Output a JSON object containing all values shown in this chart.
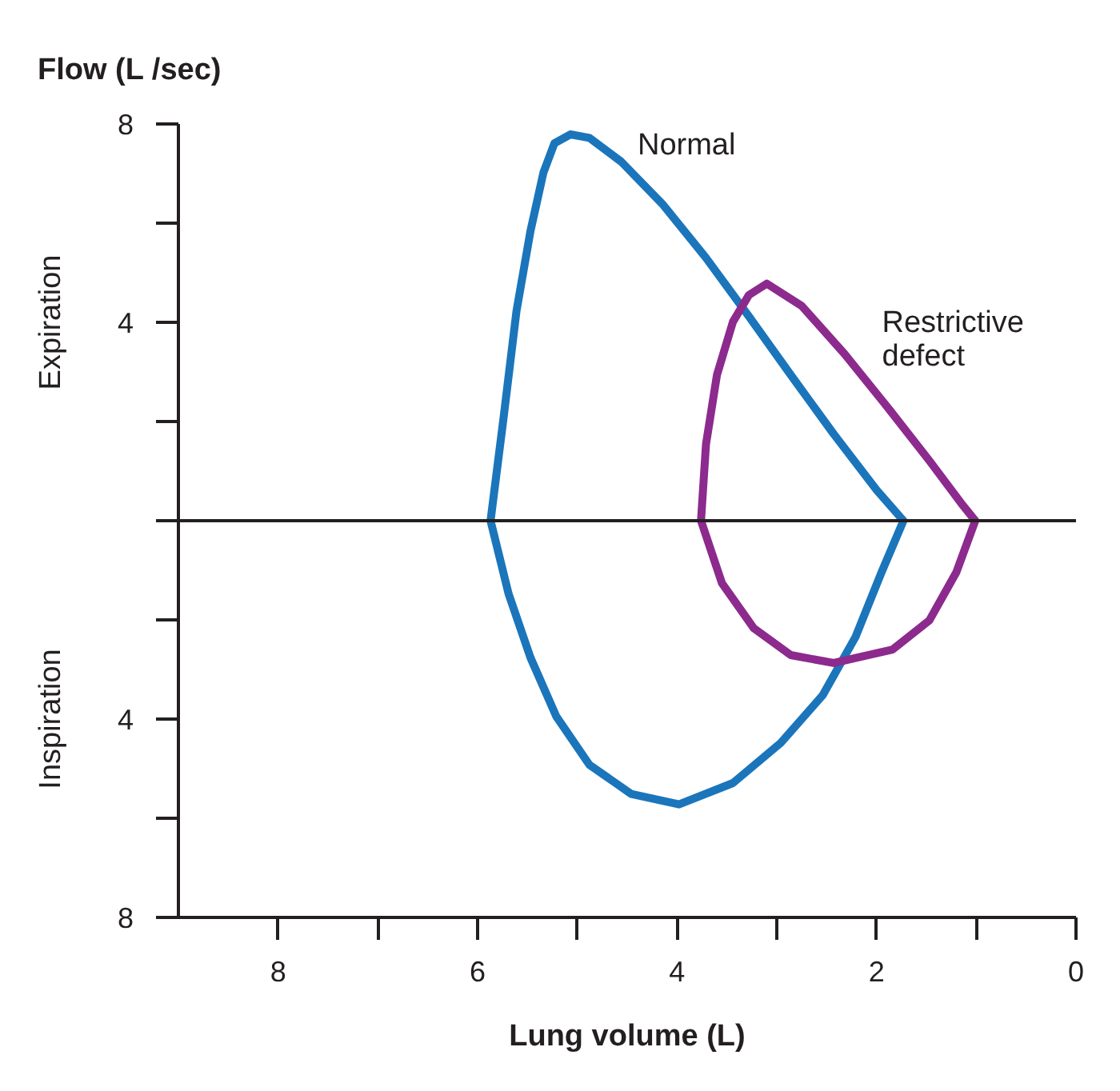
{
  "chart_data": {
    "type": "line",
    "xlabel": "Lung volume (L)",
    "ylabel": "Flow (L /sec)",
    "annotations": [
      "Expiration",
      "Inspiration"
    ],
    "xlim": [
      9,
      0
    ],
    "ylim": [
      -8,
      8
    ],
    "xticks": [
      8,
      {
        "value": 7,
        "label": null
      },
      6,
      {
        "value": 5,
        "label": null
      },
      4,
      {
        "value": 3,
        "label": null
      },
      2,
      {
        "value": 1,
        "label": null
      },
      0
    ],
    "yticks": [
      8,
      {
        "value": 6,
        "label": null
      },
      4,
      {
        "value": 2,
        "label": null
      },
      {
        "value": 0,
        "label": null
      },
      {
        "value": -2,
        "label": null
      },
      {
        "value": -4,
        "label": "4"
      },
      {
        "value": -6,
        "label": null
      },
      {
        "value": -8,
        "label": "8"
      }
    ],
    "ref_lines": [
      {
        "axis": "y",
        "value": 0,
        "color": "#231f20"
      }
    ],
    "series": [
      {
        "name": "Normal",
        "color": "#1b75bb",
        "x": [
          5.87,
          5.74,
          5.61,
          5.47,
          5.34,
          5.23,
          5.07,
          4.88,
          4.56,
          4.14,
          3.71,
          3.28,
          2.86,
          2.43,
          2.0,
          1.73,
          null,
          1.73,
          1.95,
          2.21,
          2.54,
          2.96,
          3.44,
          3.98,
          4.46,
          4.88,
          5.21,
          5.47,
          5.69,
          5.87
        ],
        "values": [
          0,
          2.07,
          4.23,
          5.84,
          7.02,
          7.61,
          7.79,
          7.72,
          7.24,
          6.37,
          5.3,
          4.12,
          2.94,
          1.75,
          0.62,
          0,
          null,
          0,
          -1.04,
          -2.34,
          -3.52,
          -4.48,
          -5.29,
          -5.72,
          -5.51,
          -4.92,
          -3.95,
          -2.76,
          -1.47,
          0
        ]
      },
      {
        "name": "Restrictive defect",
        "color": "#8c2a8e",
        "x": [
          3.76,
          3.71,
          3.6,
          3.44,
          3.28,
          3.1,
          2.75,
          2.32,
          1.89,
          1.47,
          1.15,
          1.01,
          null,
          1.01,
          1.2,
          1.47,
          1.84,
          2.43,
          2.86,
          3.23,
          3.55,
          3.76
        ],
        "values": [
          0,
          1.54,
          2.94,
          4.01,
          4.55,
          4.78,
          4.33,
          3.36,
          2.29,
          1.21,
          0.35,
          0,
          null,
          0,
          -1.04,
          -2.01,
          -2.6,
          -2.87,
          -2.71,
          -2.17,
          -1.26,
          0
        ]
      }
    ]
  }
}
